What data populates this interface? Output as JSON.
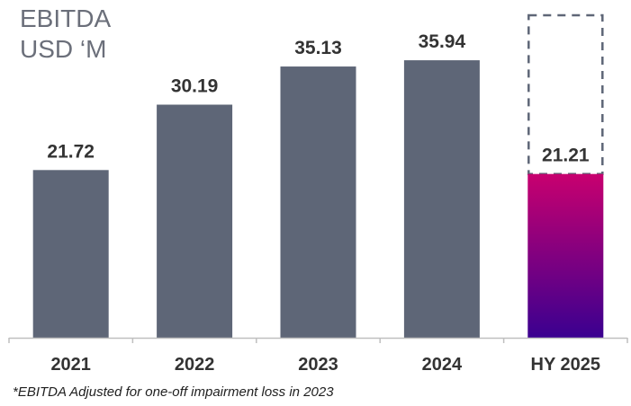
{
  "chart_data": {
    "type": "bar",
    "title_lines": [
      "EBITDA",
      "USD ‘M"
    ],
    "categories": [
      "2021",
      "2022",
      "2023",
      "2024",
      "HY 2025"
    ],
    "values": [
      21.72,
      30.19,
      35.13,
      35.94,
      21.21
    ],
    "value_labels": [
      "21.72",
      "30.19",
      "35.13",
      "35.94",
      "21.21"
    ],
    "ylim": [
      0,
      42
    ],
    "grid": false,
    "colors": {
      "bar": "#5e6677",
      "highlight_top": "#c8006f",
      "highlight_bottom": "#3a0090",
      "dashed_outline": "#5e6677",
      "axis": "#bfbfbf",
      "text": "#333333"
    },
    "highlight_index": 4,
    "projection_outline": {
      "index": 4,
      "note": "dashed outline extends to top of chart"
    }
  },
  "footnote": "*EBITDA Adjusted for one-off impairment loss in 2023"
}
